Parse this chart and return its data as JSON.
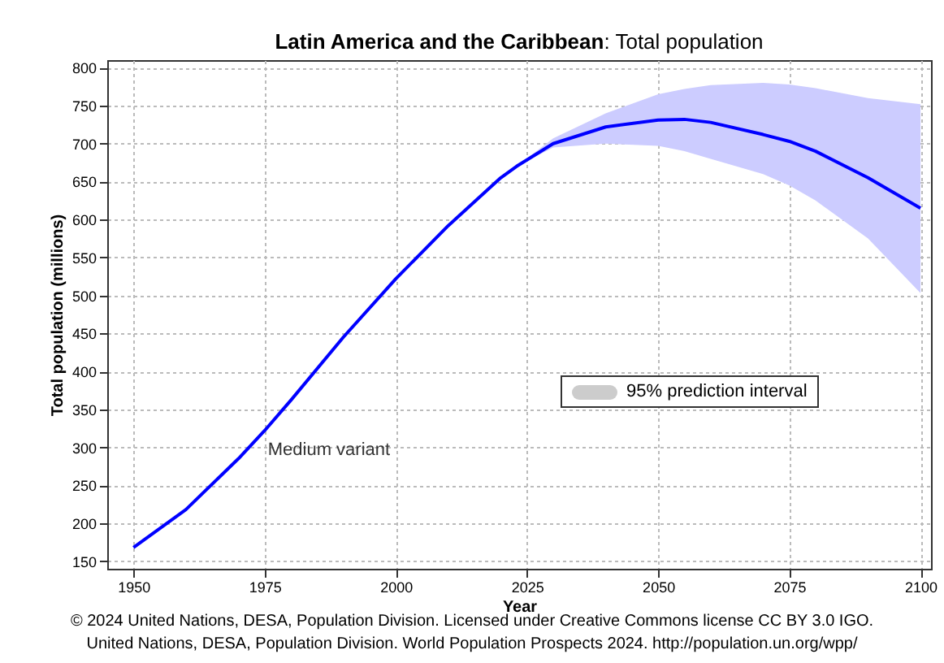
{
  "chart_data": {
    "type": "line",
    "title": "Latin America and the Caribbean: Total population",
    "xlabel": "Year",
    "ylabel": "Total population (millions)",
    "annotations": [
      "95% prediction interval",
      "© 2024 United Nations, DESA, Population Division. Licensed under Creative Commons license CC BY 3.0 IGO.",
      "United Nations, DESA, Population Division. World Population Prospects 2024. http://population.un.org/wpp/"
    ],
    "x": [
      1950,
      1960,
      1970,
      1975,
      1980,
      1990,
      2000,
      2010,
      2020,
      2023,
      2030,
      2040,
      2050,
      2055,
      2060,
      2070,
      2075,
      2080,
      2090,
      2100
    ],
    "series": [
      {
        "name": "Medium variant",
        "color": "#0000ff",
        "values": [
          168,
          218,
          285,
          322,
          362,
          445,
          522,
          592,
          655,
          670,
          700,
          722,
          731,
          732,
          728,
          712,
          703,
          690,
          655,
          615
        ],
        "lower": [
          null,
          null,
          null,
          null,
          null,
          null,
          null,
          null,
          null,
          670,
          695,
          700,
          697,
          690,
          680,
          660,
          645,
          625,
          575,
          503
        ],
        "upper": [
          null,
          null,
          null,
          null,
          null,
          null,
          null,
          null,
          null,
          670,
          707,
          740,
          765,
          772,
          777,
          780,
          778,
          773,
          760,
          752
        ]
      }
    ],
    "xlim": [
      1945,
      2102
    ],
    "ylim": [
      140,
      810
    ],
    "xticks": [
      1950,
      1975,
      2000,
      2025,
      2050,
      2075,
      2100
    ],
    "yticks": [
      150,
      200,
      250,
      300,
      350,
      400,
      450,
      500,
      550,
      600,
      650,
      700,
      750,
      800
    ],
    "grid": true,
    "legend": "center",
    "line_style": "solid",
    "marker": "none"
  }
}
